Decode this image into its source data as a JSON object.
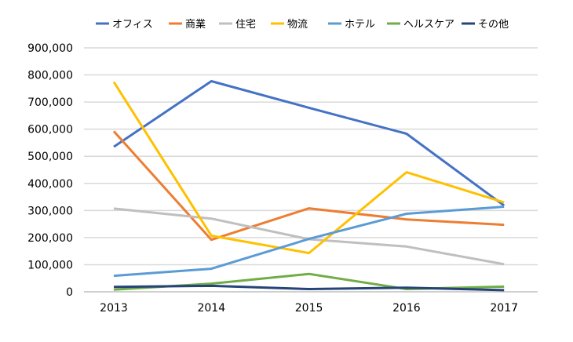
{
  "chart_data": {
    "type": "line",
    "title": "",
    "xlabel": "",
    "ylabel": "",
    "categories": [
      "2013",
      "2014",
      "2015",
      "2016",
      "2017"
    ],
    "ylim": [
      0,
      900000
    ],
    "yticks": [
      "0",
      "100,000",
      "200,000",
      "300,000",
      "400,000",
      "500,000",
      "600,000",
      "700,000",
      "800,000",
      "900,000"
    ],
    "grid": true,
    "legend_position": "top",
    "series": [
      {
        "name": "オフィス",
        "color": "#4472C4",
        "values": [
          535000,
          777000,
          679000,
          583000,
          318000
        ]
      },
      {
        "name": "商業",
        "color": "#ED7D31",
        "values": [
          592000,
          192000,
          308000,
          267000,
          247000
        ]
      },
      {
        "name": "住宅",
        "color": "#BFBFBF",
        "values": [
          307000,
          270000,
          194000,
          167000,
          102000
        ]
      },
      {
        "name": "物流",
        "color": "#FFC000",
        "values": [
          774000,
          207000,
          143000,
          441000,
          330000
        ]
      },
      {
        "name": "ホテル",
        "color": "#5B9BD5",
        "values": [
          59000,
          85000,
          195000,
          288000,
          314000
        ]
      },
      {
        "name": "ヘルスケア",
        "color": "#70AD47",
        "values": [
          8000,
          30000,
          66000,
          10000,
          19000
        ]
      },
      {
        "name": "その他",
        "color": "#264478",
        "values": [
          18000,
          22000,
          10000,
          15000,
          6000
        ]
      }
    ]
  }
}
